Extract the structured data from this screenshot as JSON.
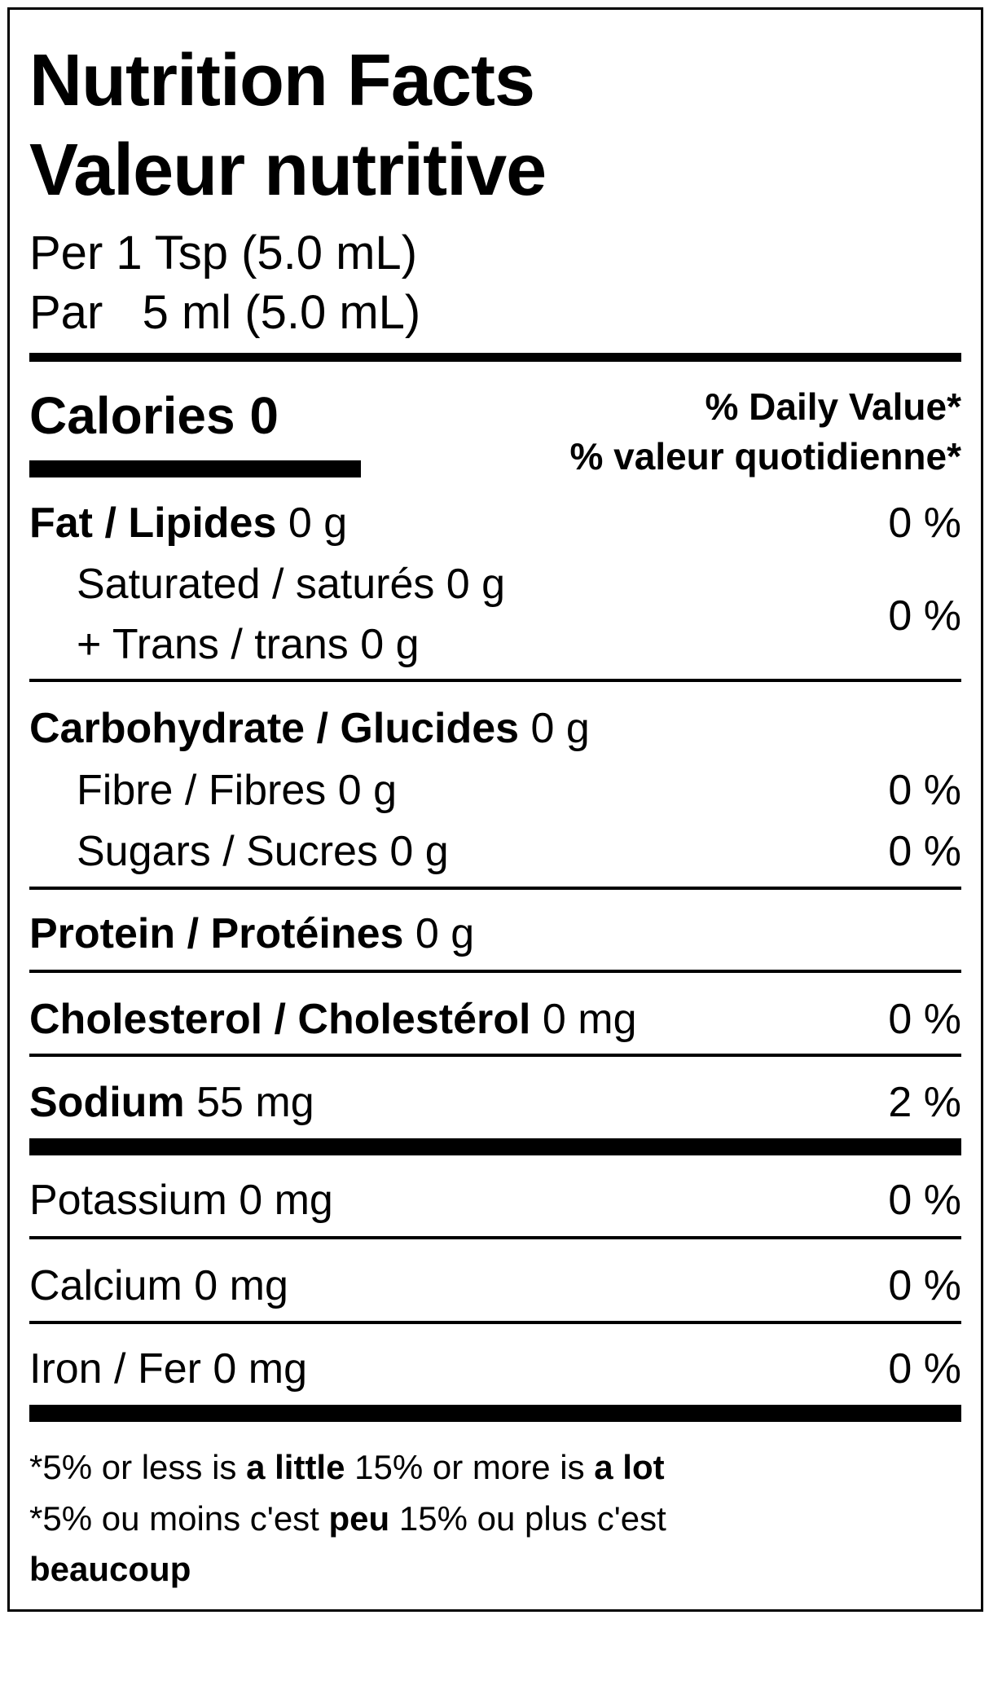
{
  "title_en": "Nutrition Facts",
  "title_fr": "Valeur nutritive",
  "serving_en": "Per 1 Tsp (5.0 mL)",
  "serving_fr": "Par   5 ml (5.0 mL)",
  "calories": "Calories 0",
  "dv_en": "% Daily Value*",
  "dv_fr": "% valeur quotidienne*",
  "rows": {
    "fat": {
      "label": "Fat / Lipides",
      "amount": " 0 g",
      "dv": "0 %"
    },
    "saturated": {
      "label": "Saturated / saturés 0 g"
    },
    "trans": {
      "label": "+ Trans / trans 0 g",
      "dv": "0 %"
    },
    "carb": {
      "label": "Carbohydrate / Glucides",
      "amount": " 0 g"
    },
    "fibre": {
      "label": "Fibre / Fibres 0 g",
      "dv": "0 %"
    },
    "sugars": {
      "label": "Sugars / Sucres 0 g",
      "dv": "0 %"
    },
    "protein": {
      "label": "Protein / Protéines",
      "amount": " 0 g"
    },
    "cholesterol": {
      "label": "Cholesterol / Cholestérol",
      "amount": " 0 mg",
      "dv": "0 %"
    },
    "sodium": {
      "label": "Sodium",
      "amount": " 55 mg",
      "dv": "2 %"
    },
    "potassium": {
      "label": "Potassium 0 mg",
      "dv": "0 %"
    },
    "calcium": {
      "label": "Calcium 0 mg",
      "dv": "0 %"
    },
    "iron": {
      "label": "Iron / Fer 0 mg",
      "dv": "0 %"
    }
  },
  "footnote": {
    "en_1": "*5% or less is ",
    "en_2": "a little",
    "en_3": " 15% or more is ",
    "en_4": "a lot",
    "fr_1": "*5% ou moins c'est ",
    "fr_2": "peu",
    "fr_3": " 15% ou plus c'est",
    "fr_4": "beaucoup"
  }
}
